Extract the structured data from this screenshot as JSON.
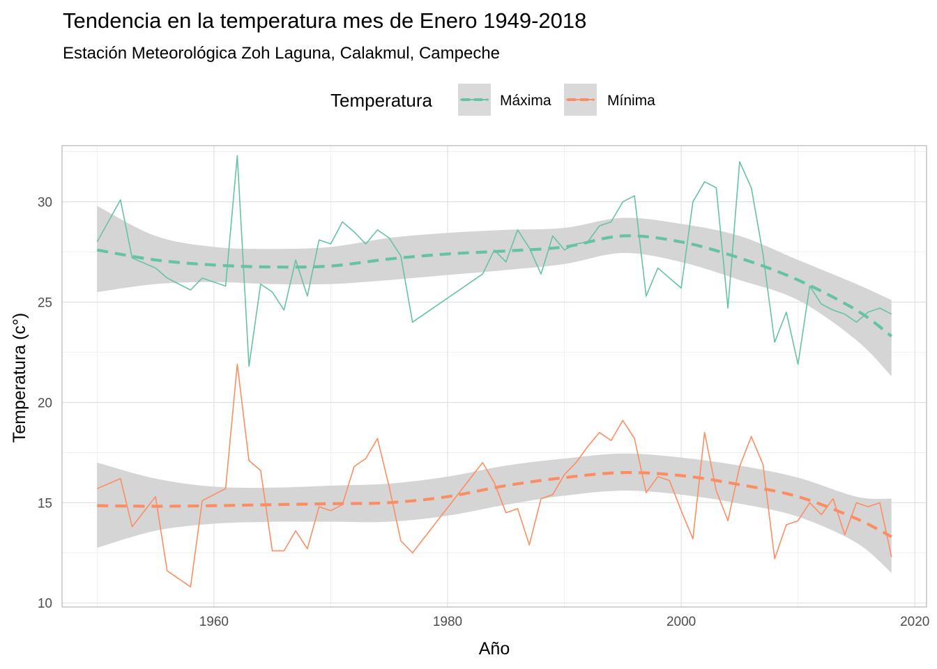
{
  "chart_data": {
    "type": "line",
    "title": "Tendencia en la temperatura mes de Enero 1949-2018",
    "subtitle": "Estación Meteorológica Zoh Laguna, Calakmul, Campeche",
    "xlabel": "Año",
    "ylabel": "Temperatura (c°)",
    "xlim": [
      1947,
      2021
    ],
    "ylim": [
      9.8,
      32.8
    ],
    "x_ticks": [
      1960,
      1980,
      2000,
      2020
    ],
    "y_ticks": [
      10,
      15,
      20,
      25,
      30
    ],
    "grid": true,
    "legend": {
      "title": "Temperatura",
      "position": "top",
      "entries": [
        "Máxima",
        "Mínima"
      ]
    },
    "colors": {
      "maxima": "#66c2a5",
      "minima": "#fc8d62",
      "ribbon": "#d3d3d3",
      "legend_key_bg": "#d9d9d9"
    },
    "series": [
      {
        "name": "Máxima",
        "x": [
          1950,
          1952,
          1953,
          1955,
          1956,
          1958,
          1959,
          1961,
          1962,
          1963,
          1964,
          1965,
          1966,
          1967,
          1968,
          1969,
          1970,
          1971,
          1972,
          1973,
          1974,
          1975,
          1976,
          1977,
          1983,
          1984,
          1985,
          1986,
          1987,
          1988,
          1989,
          1990,
          1991,
          1992,
          1993,
          1994,
          1995,
          1996,
          1997,
          1998,
          1999,
          2000,
          2001,
          2002,
          2003,
          2004,
          2005,
          2006,
          2007,
          2008,
          2009,
          2010,
          2011,
          2012,
          2013,
          2014,
          2015,
          2016,
          2017,
          2018
        ],
        "values": [
          28.0,
          30.1,
          27.2,
          26.7,
          26.2,
          25.6,
          26.2,
          25.8,
          32.3,
          21.8,
          25.9,
          25.5,
          24.6,
          27.1,
          25.3,
          28.1,
          27.9,
          29.0,
          28.5,
          27.9,
          28.6,
          28.2,
          27.3,
          24.0,
          26.4,
          27.6,
          27.0,
          28.6,
          27.7,
          26.4,
          28.3,
          27.6,
          27.9,
          28.0,
          28.8,
          29.0,
          30.0,
          30.3,
          25.3,
          26.7,
          26.2,
          25.7,
          30.0,
          31.0,
          30.7,
          24.7,
          32.0,
          30.7,
          27.4,
          23.0,
          24.5,
          21.9,
          25.8,
          24.9,
          24.6,
          24.4,
          24.0,
          24.5,
          24.7,
          24.4
        ]
      },
      {
        "name": "Mínima",
        "x": [
          1950,
          1952,
          1953,
          1955,
          1956,
          1958,
          1959,
          1961,
          1962,
          1963,
          1964,
          1965,
          1966,
          1967,
          1968,
          1969,
          1970,
          1971,
          1972,
          1973,
          1974,
          1975,
          1976,
          1977,
          1983,
          1984,
          1985,
          1986,
          1987,
          1988,
          1989,
          1990,
          1991,
          1992,
          1993,
          1994,
          1995,
          1996,
          1997,
          1998,
          1999,
          2000,
          2001,
          2002,
          2003,
          2004,
          2005,
          2006,
          2007,
          2008,
          2009,
          2010,
          2011,
          2012,
          2013,
          2014,
          2015,
          2016,
          2017,
          2018
        ],
        "values": [
          15.7,
          16.2,
          13.8,
          15.3,
          11.6,
          10.8,
          15.1,
          15.7,
          21.9,
          17.1,
          16.6,
          12.6,
          12.6,
          13.6,
          12.7,
          14.8,
          14.6,
          14.9,
          16.8,
          17.2,
          18.2,
          15.8,
          13.1,
          12.5,
          17.0,
          16.0,
          14.5,
          14.7,
          12.9,
          15.2,
          15.4,
          16.4,
          17.0,
          17.8,
          18.5,
          18.1,
          19.1,
          18.2,
          15.5,
          16.3,
          16.1,
          14.6,
          13.2,
          18.5,
          15.6,
          14.1,
          16.8,
          18.3,
          16.9,
          12.2,
          13.9,
          14.1,
          15.0,
          14.4,
          15.2,
          13.4,
          15.0,
          14.8,
          15.0,
          12.3
        ]
      }
    ],
    "trend": [
      {
        "name": "Máxima",
        "x": [
          1950,
          1955,
          1960,
          1965,
          1970,
          1975,
          1980,
          1985,
          1990,
          1995,
          2000,
          2005,
          2010,
          2015,
          2018
        ],
        "values": [
          27.6,
          27.1,
          26.85,
          26.75,
          26.8,
          27.15,
          27.4,
          27.55,
          27.75,
          28.3,
          28.0,
          27.2,
          26.1,
          24.6,
          23.3
        ],
        "lower": [
          25.5,
          25.9,
          26.0,
          25.9,
          25.9,
          26.1,
          26.35,
          26.6,
          26.9,
          27.45,
          27.0,
          26.1,
          25.1,
          23.1,
          21.3
        ],
        "upper": [
          29.8,
          28.3,
          27.75,
          27.65,
          27.75,
          28.2,
          28.45,
          28.6,
          28.7,
          29.2,
          28.9,
          28.3,
          27.1,
          25.9,
          25.1
        ]
      },
      {
        "name": "Mínima",
        "x": [
          1950,
          1955,
          1960,
          1965,
          1970,
          1975,
          1980,
          1985,
          1990,
          1995,
          2000,
          2005,
          2010,
          2015,
          2018
        ],
        "values": [
          14.85,
          14.82,
          14.85,
          14.9,
          14.95,
          15.0,
          15.3,
          15.85,
          16.25,
          16.5,
          16.35,
          15.9,
          15.3,
          14.2,
          13.3
        ],
        "lower": [
          12.75,
          13.6,
          13.95,
          14.05,
          14.05,
          14.05,
          14.35,
          14.9,
          15.35,
          15.6,
          15.4,
          14.95,
          14.3,
          13.0,
          11.5
        ],
        "upper": [
          17.0,
          16.2,
          15.8,
          15.75,
          15.85,
          15.95,
          16.3,
          16.85,
          17.2,
          17.45,
          17.25,
          16.85,
          16.25,
          15.3,
          15.2
        ]
      }
    ]
  }
}
